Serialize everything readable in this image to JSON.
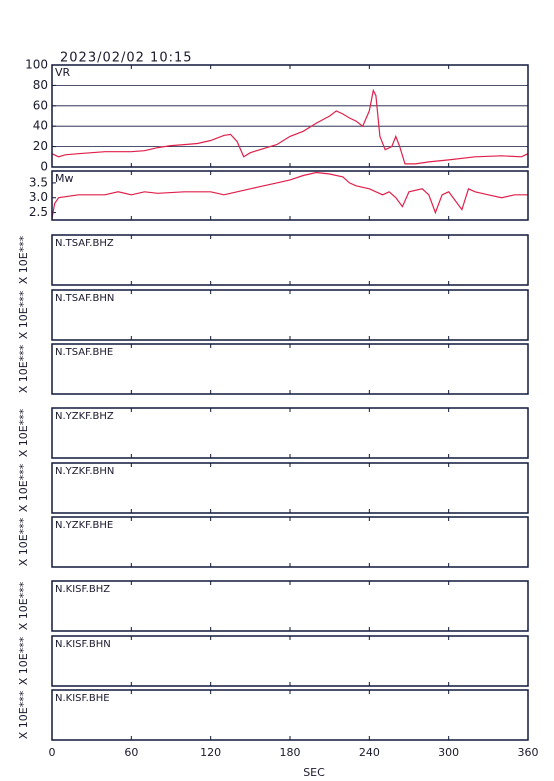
{
  "chart_data": [
    {
      "type": "line",
      "title": "2023/02/02 10:15",
      "label": "VR",
      "color": "#e0204a",
      "grid": true,
      "ylim": [
        0,
        100
      ],
      "yticks": [
        0,
        20,
        40,
        60,
        80,
        100
      ],
      "x": [
        0,
        5,
        10,
        20,
        30,
        40,
        50,
        60,
        70,
        80,
        90,
        100,
        110,
        120,
        130,
        135,
        140,
        145,
        150,
        160,
        170,
        180,
        190,
        200,
        210,
        215,
        220,
        225,
        230,
        235,
        240,
        243,
        245,
        248,
        252,
        257,
        260,
        263,
        267,
        275,
        285,
        300,
        320,
        340,
        355,
        360
      ],
      "values": [
        13,
        10,
        12,
        13,
        14,
        15,
        15,
        15,
        16,
        19,
        21,
        22,
        23,
        26,
        31,
        32,
        25,
        10,
        14,
        18,
        22,
        30,
        35,
        43,
        50,
        55,
        52,
        48,
        45,
        40,
        55,
        75,
        70,
        30,
        17,
        20,
        30,
        20,
        3,
        3,
        5,
        7,
        10,
        11,
        10,
        13
      ]
    },
    {
      "type": "line",
      "label": "Mw",
      "color": "#e0204a",
      "grid": false,
      "ylim": [
        2.25,
        3.9
      ],
      "yticks": [
        2.5,
        {
          "value": 3,
          "label": "3.0"
        },
        3.5
      ],
      "x": [
        0,
        2,
        5,
        20,
        40,
        50,
        60,
        70,
        80,
        100,
        120,
        130,
        140,
        150,
        160,
        170,
        180,
        190,
        200,
        210,
        220,
        225,
        230,
        240,
        250,
        255,
        260,
        265,
        270,
        280,
        285,
        290,
        295,
        300,
        310,
        315,
        320,
        330,
        340,
        350,
        360
      ],
      "values": [
        2.3,
        2.8,
        3.0,
        3.1,
        3.1,
        3.2,
        3.1,
        3.2,
        3.15,
        3.2,
        3.2,
        3.1,
        3.2,
        3.3,
        3.4,
        3.5,
        3.6,
        3.75,
        3.85,
        3.8,
        3.7,
        3.5,
        3.4,
        3.3,
        3.1,
        3.2,
        3.0,
        2.7,
        3.2,
        3.3,
        3.1,
        2.5,
        3.1,
        3.2,
        2.6,
        3.3,
        3.2,
        3.1,
        3.0,
        3.1,
        3.1
      ]
    }
  ],
  "x_axis": {
    "label": "SEC",
    "xlim": [
      0,
      360
    ],
    "xticks": [
      0,
      60,
      120,
      180,
      240,
      300,
      360
    ]
  },
  "channels": [
    {
      "label": "N.TSAF.BHZ",
      "scale": "X 10E***"
    },
    {
      "label": "N.TSAF.BHN",
      "scale": "X 10E***"
    },
    {
      "label": "N.TSAF.BHE",
      "scale": "X 10E***"
    },
    {
      "label": "N.YZKF.BHZ",
      "scale": "X 10E***"
    },
    {
      "label": "N.YZKF.BHN",
      "scale": "X 10E***"
    },
    {
      "label": "N.YZKF.BHE",
      "scale": "X 10E***"
    },
    {
      "label": "N.KISF.BHZ",
      "scale": "X 10E***"
    },
    {
      "label": "N.KISF.BHN",
      "scale": "X 10E***"
    },
    {
      "label": "N.KISF.BHE",
      "scale": "X 10E***"
    }
  ]
}
